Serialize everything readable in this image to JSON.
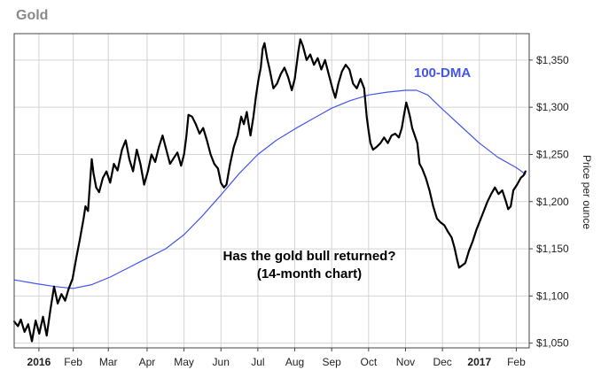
{
  "chart_data": {
    "type": "line",
    "title": "Gold",
    "ylabel": "Price per ounce",
    "annotation": [
      "Has the gold bull returned?",
      "(14-month chart)"
    ],
    "ylim": [
      1045,
      1378
    ],
    "y_ticks": [
      1050,
      1100,
      1150,
      1200,
      1250,
      1300,
      1350
    ],
    "y_tick_labels": [
      "$1,050",
      "$1,100",
      "$1,150",
      "$1,200",
      "$1,250",
      "$1,300",
      "$1,350"
    ],
    "x_ticks": [
      {
        "label": "2016",
        "bold": true,
        "x": 0.07
      },
      {
        "label": "Feb",
        "bold": false,
        "x": 1.0
      },
      {
        "label": "Mar",
        "bold": false,
        "x": 1.95
      },
      {
        "label": "Apr",
        "bold": false,
        "x": 3.0
      },
      {
        "label": "May",
        "bold": false,
        "x": 4.0
      },
      {
        "label": "Jun",
        "bold": false,
        "x": 5.0
      },
      {
        "label": "Jul",
        "bold": false,
        "x": 6.0
      },
      {
        "label": "Aug",
        "bold": false,
        "x": 7.0
      },
      {
        "label": "Sep",
        "bold": false,
        "x": 8.0
      },
      {
        "label": "Oct",
        "bold": false,
        "x": 9.0
      },
      {
        "label": "Nov",
        "bold": false,
        "x": 10.0
      },
      {
        "label": "Dec",
        "bold": false,
        "x": 11.0
      },
      {
        "label": "2017",
        "bold": true,
        "x": 12.0
      },
      {
        "label": "Feb",
        "bold": false,
        "x": 13.0
      }
    ],
    "xlim": [
      -0.6,
      13.35
    ],
    "grid": true,
    "series": [
      {
        "name": "Gold",
        "color": "#000000",
        "points": [
          [
            -0.6,
            1073
          ],
          [
            -0.5,
            1068
          ],
          [
            -0.42,
            1075
          ],
          [
            -0.32,
            1062
          ],
          [
            -0.22,
            1070
          ],
          [
            -0.12,
            1052
          ],
          [
            -0.02,
            1074
          ],
          [
            0.08,
            1060
          ],
          [
            0.18,
            1078
          ],
          [
            0.28,
            1058
          ],
          [
            0.38,
            1085
          ],
          [
            0.48,
            1110
          ],
          [
            0.58,
            1092
          ],
          [
            0.68,
            1102
          ],
          [
            0.78,
            1095
          ],
          [
            0.88,
            1108
          ],
          [
            0.98,
            1118
          ],
          [
            1.08,
            1140
          ],
          [
            1.18,
            1160
          ],
          [
            1.28,
            1182
          ],
          [
            1.33,
            1195
          ],
          [
            1.4,
            1190
          ],
          [
            1.45,
            1218
          ],
          [
            1.5,
            1245
          ],
          [
            1.55,
            1230
          ],
          [
            1.62,
            1215
          ],
          [
            1.7,
            1210
          ],
          [
            1.8,
            1225
          ],
          [
            1.9,
            1232
          ],
          [
            2.0,
            1220
          ],
          [
            2.1,
            1240
          ],
          [
            2.2,
            1233
          ],
          [
            2.32,
            1255
          ],
          [
            2.42,
            1265
          ],
          [
            2.52,
            1245
          ],
          [
            2.62,
            1232
          ],
          [
            2.72,
            1255
          ],
          [
            2.82,
            1240
          ],
          [
            2.92,
            1218
          ],
          [
            3.02,
            1232
          ],
          [
            3.12,
            1250
          ],
          [
            3.22,
            1242
          ],
          [
            3.32,
            1258
          ],
          [
            3.42,
            1270
          ],
          [
            3.52,
            1255
          ],
          [
            3.62,
            1240
          ],
          [
            3.72,
            1246
          ],
          [
            3.82,
            1252
          ],
          [
            3.92,
            1238
          ],
          [
            4.0,
            1250
          ],
          [
            4.06,
            1268
          ],
          [
            4.12,
            1292
          ],
          [
            4.22,
            1290
          ],
          [
            4.32,
            1282
          ],
          [
            4.42,
            1272
          ],
          [
            4.52,
            1278
          ],
          [
            4.62,
            1265
          ],
          [
            4.72,
            1250
          ],
          [
            4.82,
            1240
          ],
          [
            4.92,
            1235
          ],
          [
            5.0,
            1220
          ],
          [
            5.08,
            1215
          ],
          [
            5.15,
            1218
          ],
          [
            5.25,
            1240
          ],
          [
            5.35,
            1258
          ],
          [
            5.45,
            1270
          ],
          [
            5.55,
            1290
          ],
          [
            5.62,
            1282
          ],
          [
            5.7,
            1295
          ],
          [
            5.75,
            1282
          ],
          [
            5.8,
            1270
          ],
          [
            5.88,
            1290
          ],
          [
            5.95,
            1312
          ],
          [
            6.02,
            1330
          ],
          [
            6.08,
            1342
          ],
          [
            6.13,
            1362
          ],
          [
            6.18,
            1368
          ],
          [
            6.25,
            1352
          ],
          [
            6.32,
            1340
          ],
          [
            6.42,
            1320
          ],
          [
            6.52,
            1325
          ],
          [
            6.62,
            1335
          ],
          [
            6.72,
            1342
          ],
          [
            6.82,
            1332
          ],
          [
            6.92,
            1318
          ],
          [
            7.0,
            1330
          ],
          [
            7.05,
            1345
          ],
          [
            7.1,
            1360
          ],
          [
            7.15,
            1372
          ],
          [
            7.22,
            1365
          ],
          [
            7.32,
            1350
          ],
          [
            7.42,
            1356
          ],
          [
            7.52,
            1345
          ],
          [
            7.62,
            1352
          ],
          [
            7.72,
            1340
          ],
          [
            7.82,
            1350
          ],
          [
            7.92,
            1335
          ],
          [
            8.02,
            1320
          ],
          [
            8.1,
            1310
          ],
          [
            8.18,
            1325
          ],
          [
            8.28,
            1338
          ],
          [
            8.38,
            1345
          ],
          [
            8.48,
            1340
          ],
          [
            8.58,
            1325
          ],
          [
            8.68,
            1320
          ],
          [
            8.78,
            1330
          ],
          [
            8.88,
            1320
          ],
          [
            8.95,
            1290
          ],
          [
            9.0,
            1275
          ],
          [
            9.05,
            1262
          ],
          [
            9.12,
            1255
          ],
          [
            9.22,
            1258
          ],
          [
            9.32,
            1262
          ],
          [
            9.42,
            1268
          ],
          [
            9.52,
            1262
          ],
          [
            9.62,
            1270
          ],
          [
            9.72,
            1272
          ],
          [
            9.82,
            1268
          ],
          [
            9.9,
            1278
          ],
          [
            9.96,
            1292
          ],
          [
            10.02,
            1305
          ],
          [
            10.07,
            1298
          ],
          [
            10.12,
            1290
          ],
          [
            10.18,
            1278
          ],
          [
            10.25,
            1270
          ],
          [
            10.32,
            1262
          ],
          [
            10.38,
            1240
          ],
          [
            10.45,
            1235
          ],
          [
            10.55,
            1225
          ],
          [
            10.65,
            1212
          ],
          [
            10.75,
            1195
          ],
          [
            10.85,
            1182
          ],
          [
            10.95,
            1178
          ],
          [
            11.05,
            1175
          ],
          [
            11.15,
            1168
          ],
          [
            11.25,
            1162
          ],
          [
            11.32,
            1152
          ],
          [
            11.4,
            1138
          ],
          [
            11.45,
            1130
          ],
          [
            11.52,
            1132
          ],
          [
            11.62,
            1135
          ],
          [
            11.72,
            1148
          ],
          [
            11.82,
            1158
          ],
          [
            11.92,
            1170
          ],
          [
            12.02,
            1180
          ],
          [
            12.12,
            1190
          ],
          [
            12.22,
            1200
          ],
          [
            12.32,
            1208
          ],
          [
            12.42,
            1215
          ],
          [
            12.52,
            1208
          ],
          [
            12.62,
            1212
          ],
          [
            12.72,
            1200
          ],
          [
            12.78,
            1192
          ],
          [
            12.85,
            1195
          ],
          [
            12.92,
            1212
          ],
          [
            13.02,
            1218
          ],
          [
            13.12,
            1225
          ],
          [
            13.2,
            1228
          ],
          [
            13.25,
            1232
          ]
        ]
      },
      {
        "name": "100-DMA",
        "color": "#4455ee",
        "points": [
          [
            -0.6,
            1117
          ],
          [
            0.0,
            1113
          ],
          [
            0.5,
            1110
          ],
          [
            1.0,
            1108
          ],
          [
            1.5,
            1112
          ],
          [
            2.0,
            1120
          ],
          [
            2.5,
            1130
          ],
          [
            3.0,
            1140
          ],
          [
            3.5,
            1150
          ],
          [
            4.0,
            1165
          ],
          [
            4.5,
            1185
          ],
          [
            5.0,
            1207
          ],
          [
            5.5,
            1230
          ],
          [
            6.0,
            1250
          ],
          [
            6.5,
            1265
          ],
          [
            7.0,
            1277
          ],
          [
            7.5,
            1288
          ],
          [
            8.0,
            1299
          ],
          [
            8.5,
            1307
          ],
          [
            9.0,
            1313
          ],
          [
            9.5,
            1316
          ],
          [
            10.0,
            1318
          ],
          [
            10.3,
            1318
          ],
          [
            10.6,
            1313
          ],
          [
            11.0,
            1298
          ],
          [
            11.5,
            1280
          ],
          [
            12.0,
            1262
          ],
          [
            12.5,
            1247
          ],
          [
            13.0,
            1236
          ],
          [
            13.25,
            1229
          ]
        ]
      }
    ]
  }
}
